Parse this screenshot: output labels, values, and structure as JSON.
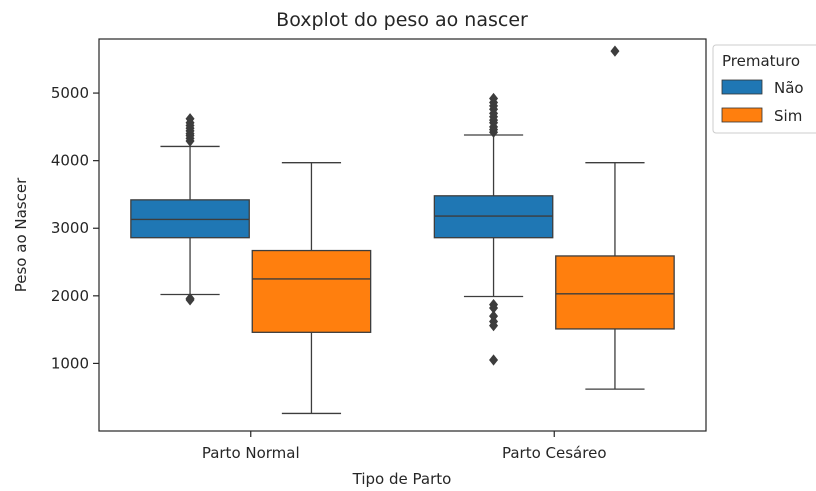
{
  "chart_data": {
    "type": "boxplot",
    "title": "Boxplot do peso ao nascer",
    "xlabel": "Tipo de Parto",
    "ylabel": "Peso ao Nascer",
    "ylim": [
      0,
      5800
    ],
    "yticks": [
      1000,
      2000,
      3000,
      4000,
      5000
    ],
    "categories": [
      "Parto Normal",
      "Parto Cesáreo"
    ],
    "legend": {
      "title": "Prematuro",
      "position": "outside-top-right"
    },
    "series": [
      {
        "name": "Não",
        "color": "#1f77b4",
        "boxes": [
          {
            "whisker_low": 2020,
            "q1": 2860,
            "median": 3130,
            "q3": 3420,
            "whisker_high": 4210,
            "outliers": [
              4290,
              4330,
              4370,
              4400,
              4440,
              4480,
              4520,
              4560,
              4620,
              1960,
              1940
            ]
          },
          {
            "whisker_low": 1990,
            "q1": 2860,
            "median": 3180,
            "q3": 3480,
            "whisker_high": 4380,
            "outliers": [
              4420,
              4460,
              4500,
              4560,
              4600,
              4650,
              4700,
              4760,
              4810,
              4860,
              4920,
              1870,
              1820,
              1700,
              1620,
              1560,
              1050
            ]
          }
        ]
      },
      {
        "name": "Sim",
        "color": "#ff7f0e",
        "boxes": [
          {
            "whisker_low": 260,
            "q1": 1460,
            "median": 2250,
            "q3": 2670,
            "whisker_high": 3970,
            "outliers": []
          },
          {
            "whisker_low": 620,
            "q1": 1510,
            "median": 2030,
            "q3": 2590,
            "whisker_high": 3970,
            "outliers": [
              5620
            ]
          }
        ]
      }
    ]
  }
}
